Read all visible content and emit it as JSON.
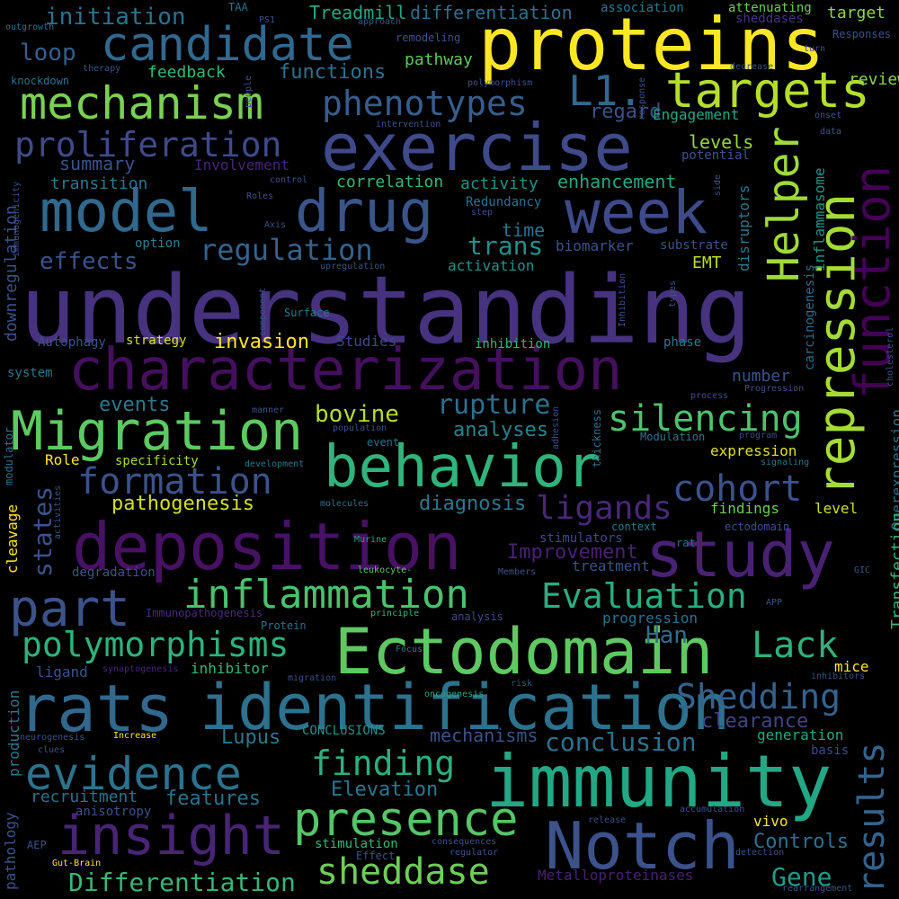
{
  "words": [
    {
      "text": "understanding",
      "color": "#46327e"
    },
    {
      "text": "characterization",
      "color": "#440f5c"
    },
    {
      "text": "deposition",
      "color": "#471164"
    },
    {
      "text": "Ectodomain",
      "color": "#5ec962"
    },
    {
      "text": "exercise",
      "color": "#3e4a89"
    },
    {
      "text": "proteins",
      "color": "#fde725"
    },
    {
      "text": "immunity",
      "color": "#22a884"
    },
    {
      "text": "behavior",
      "color": "#2fb47c"
    },
    {
      "text": "study",
      "color": "#482173"
    },
    {
      "text": "Notch",
      "color": "#3b528b"
    },
    {
      "text": "rats",
      "color": "#31688e"
    },
    {
      "text": "identification",
      "color": "#2c728e"
    },
    {
      "text": "model",
      "color": "#30688e"
    },
    {
      "text": "drug",
      "color": "#3a548c"
    },
    {
      "text": "week",
      "color": "#3e4a89"
    },
    {
      "text": "Migration",
      "color": "#5ec962"
    },
    {
      "text": "insight",
      "color": "#482475"
    },
    {
      "text": "candidate",
      "color": "#31688e"
    },
    {
      "text": "mechanism",
      "color": "#7ad151"
    },
    {
      "text": "targets",
      "color": "#b5de2b"
    },
    {
      "text": "L1.",
      "color": "#31688e"
    },
    {
      "text": "part",
      "color": "#3b528b"
    },
    {
      "text": "presence",
      "color": "#54c568"
    },
    {
      "text": "evidence",
      "color": "#2c728e"
    },
    {
      "text": "inflammation",
      "color": "#4ac16d"
    },
    {
      "text": "proliferation",
      "color": "#3e4a89"
    },
    {
      "text": "repression",
      "color": "#a5db36"
    },
    {
      "text": "function",
      "color": "#440154"
    },
    {
      "text": "Helper",
      "color": "#9fda3a"
    },
    {
      "text": "results",
      "color": "#32648e"
    },
    {
      "text": "sheddase",
      "color": "#6ece58"
    },
    {
      "text": "phenotypes",
      "color": "#365d8d"
    },
    {
      "text": "silencing",
      "color": "#4ec36b"
    },
    {
      "text": "formation",
      "color": "#3b528b"
    },
    {
      "text": "polymorphisms",
      "color": "#2db27d"
    },
    {
      "text": "Evaluation",
      "color": "#28ae80"
    },
    {
      "text": "Shedding",
      "color": "#33638d"
    },
    {
      "text": "regulation",
      "color": "#33638d"
    },
    {
      "text": "cohort",
      "color": "#3b528b"
    },
    {
      "text": "Lack",
      "color": "#2db27d"
    },
    {
      "text": "ligands",
      "color": "#482878"
    },
    {
      "text": "finding",
      "color": "#2ab07f"
    },
    {
      "text": "conclusion",
      "color": "#2c728e"
    },
    {
      "text": "rupture",
      "color": "#2e6f8e"
    },
    {
      "text": "Differentiation",
      "color": "#35b779"
    },
    {
      "text": "Gene",
      "color": "#1e9b8a"
    },
    {
      "text": "Han",
      "color": "#2e6e8e"
    },
    {
      "text": "bovine",
      "color": "#b5de2b"
    },
    {
      "text": "states",
      "color": "#3b528b"
    },
    {
      "text": "analyses",
      "color": "#25848e"
    },
    {
      "text": "diagnosis",
      "color": "#2a788e"
    },
    {
      "text": "invasion",
      "color": "#fde725"
    },
    {
      "text": "events",
      "color": "#2a788e"
    },
    {
      "text": "effects",
      "color": "#3b528b"
    },
    {
      "text": "trans",
      "color": "#20928c"
    },
    {
      "text": "Elevation",
      "color": "#2a788e"
    },
    {
      "text": "recruitment",
      "color": "#2c728e"
    },
    {
      "text": "features",
      "color": "#2c728e"
    },
    {
      "text": "Improvement",
      "color": "#482173"
    },
    {
      "text": "pathogenesis",
      "color": "#d2e21b"
    },
    {
      "text": "clearance",
      "color": "#414487"
    },
    {
      "text": "Controls",
      "color": "#2c728e"
    },
    {
      "text": "Lupus",
      "color": "#2a788e"
    },
    {
      "text": "mechanisms",
      "color": "#3b528b"
    },
    {
      "text": "initiation",
      "color": "#2c728e"
    },
    {
      "text": "Treadmill",
      "color": "#22a884"
    },
    {
      "text": "differentiation",
      "color": "#2e6e8e"
    },
    {
      "text": "loop",
      "color": "#355f8d"
    },
    {
      "text": "functions",
      "color": "#2c728e"
    },
    {
      "text": "feedback",
      "color": "#35b779"
    },
    {
      "text": "pathway",
      "color": "#5ec962"
    },
    {
      "text": "review",
      "color": "#86d549"
    },
    {
      "text": "target",
      "color": "#90d743"
    },
    {
      "text": "association",
      "color": "#2a788e"
    },
    {
      "text": "attenuating",
      "color": "#6ece58"
    },
    {
      "text": "sheddases",
      "color": "#46337f"
    },
    {
      "text": "regard",
      "color": "#3b528b"
    },
    {
      "text": "Engagement",
      "color": "#22a884"
    },
    {
      "text": "summary",
      "color": "#3b528b"
    },
    {
      "text": "Involvement",
      "color": "#482475"
    },
    {
      "text": "levels",
      "color": "#95d840"
    },
    {
      "text": "potential",
      "color": "#3b528b"
    },
    {
      "text": "transition",
      "color": "#2a788e"
    },
    {
      "text": "correlation",
      "color": "#35b779"
    },
    {
      "text": "activity",
      "color": "#21918c"
    },
    {
      "text": "enhancement",
      "color": "#22a884"
    },
    {
      "text": "Redundancy",
      "color": "#2c728e"
    },
    {
      "text": "time",
      "color": "#2c728e"
    },
    {
      "text": "biomarker",
      "color": "#3b528b"
    },
    {
      "text": "substrate",
      "color": "#3b528b"
    },
    {
      "text": "option",
      "color": "#27808e"
    },
    {
      "text": "activation",
      "color": "#21918c"
    },
    {
      "text": "EMT",
      "color": "#bddf26"
    },
    {
      "text": "disruptors",
      "color": "#2a788e"
    },
    {
      "text": "inflammasome",
      "color": "#21918c"
    },
    {
      "text": "carcinogenesis",
      "color": "#2e6e8e"
    },
    {
      "text": "Overexpression",
      "color": "#2c728e"
    },
    {
      "text": "Transfection",
      "color": "#35b779"
    },
    {
      "text": "downregulation",
      "color": "#3b528b"
    },
    {
      "text": "Autophagy",
      "color": "#3b528b"
    },
    {
      "text": "strategy",
      "color": "#d8e219"
    },
    {
      "text": "Studies",
      "color": "#3e4a89"
    },
    {
      "text": "inhibition",
      "color": "#35b779"
    },
    {
      "text": "phase",
      "color": "#2a788e"
    },
    {
      "text": "number",
      "color": "#3b528b"
    },
    {
      "text": "system",
      "color": "#2a788e"
    },
    {
      "text": "Role",
      "color": "#fde725"
    },
    {
      "text": "specificity",
      "color": "#aadc32"
    },
    {
      "text": "expression",
      "color": "#dde318"
    },
    {
      "text": "findings",
      "color": "#6ece58"
    },
    {
      "text": "level",
      "color": "#cde11d"
    },
    {
      "text": "stimulators",
      "color": "#3e4a89"
    },
    {
      "text": "treatment",
      "color": "#3b528b"
    },
    {
      "text": "context",
      "color": "#2a788e"
    },
    {
      "text": "ectodomain",
      "color": "#3b528b"
    },
    {
      "text": "rat",
      "color": "#2c728e"
    },
    {
      "text": "cleavage",
      "color": "#fde725"
    },
    {
      "text": "modulator",
      "color": "#2c728e"
    },
    {
      "text": "degradation",
      "color": "#3b528b"
    },
    {
      "text": "progression",
      "color": "#2c728e"
    },
    {
      "text": "inhibitor",
      "color": "#35b779"
    },
    {
      "text": "ligand",
      "color": "#3b528b"
    },
    {
      "text": "mice",
      "color": "#fde725"
    },
    {
      "text": "production",
      "color": "#2a788e"
    },
    {
      "text": "pathology",
      "color": "#3b528b"
    },
    {
      "text": "generation",
      "color": "#22a884"
    },
    {
      "text": "CONCLUSIONS",
      "color": "#21918c"
    },
    {
      "text": "stimulation",
      "color": "#35b779"
    },
    {
      "text": "Effect",
      "color": "#3b528b"
    },
    {
      "text": "vivo",
      "color": "#fde725"
    },
    {
      "text": "AEP",
      "color": "#3b528b"
    },
    {
      "text": "Metalloproteinases",
      "color": "#482173"
    },
    {
      "text": "basis",
      "color": "#3e4a89"
    },
    {
      "text": "anisotropy",
      "color": "#3b528b"
    },
    {
      "text": "Surface",
      "color": "#2a788e"
    },
    {
      "text": "Immunopathogenesis",
      "color": "#472d7b"
    },
    {
      "text": "Protein",
      "color": "#2c728e"
    },
    {
      "text": "analysis",
      "color": "#3e4a89"
    },
    {
      "text": "Modulation",
      "color": "#2a788e"
    },
    {
      "text": "thickness",
      "color": "#2c728e"
    },
    {
      "text": "adhesion",
      "color": "#3b528b"
    },
    {
      "text": "program",
      "color": "#3e4a89"
    },
    {
      "text": "signaling",
      "color": "#2a788e"
    },
    {
      "text": "population",
      "color": "#3b528b"
    },
    {
      "text": "event",
      "color": "#2c728e"
    },
    {
      "text": "development",
      "color": "#2a788e"
    },
    {
      "text": "molecules",
      "color": "#2c728e"
    },
    {
      "text": "Murine",
      "color": "#22a884"
    },
    {
      "text": "leukocyte-",
      "color": "#5ec962"
    },
    {
      "text": "Members",
      "color": "#3b528b"
    },
    {
      "text": "principle",
      "color": "#35b779"
    },
    {
      "text": "Focus",
      "color": "#2a788e"
    },
    {
      "text": "migration",
      "color": "#3b528b"
    },
    {
      "text": "risk",
      "color": "#3b528b"
    },
    {
      "text": "oncogenesis",
      "color": "#22a884"
    },
    {
      "text": "synaptogenesis",
      "color": "#482475"
    },
    {
      "text": "Increase",
      "color": "#fde725"
    },
    {
      "text": "clues",
      "color": "#3b528b"
    },
    {
      "text": "neurogenesis",
      "color": "#3b528b"
    },
    {
      "text": "consequences",
      "color": "#3b528b"
    },
    {
      "text": "regulator",
      "color": "#3b528b"
    },
    {
      "text": "detection",
      "color": "#3b528b"
    },
    {
      "text": "release",
      "color": "#3b528b"
    },
    {
      "text": "accumulation",
      "color": "#3b528b"
    },
    {
      "text": "rearrangement",
      "color": "#3b528b"
    },
    {
      "text": "inhibitors",
      "color": "#3b528b"
    },
    {
      "text": "GIC",
      "color": "#3b528b"
    },
    {
      "text": "APP",
      "color": "#3b528b"
    },
    {
      "text": "Gut-Brain",
      "color": "#fde725"
    },
    {
      "text": "outgrowth",
      "color": "#2c728e"
    },
    {
      "text": "knockdown",
      "color": "#2c728e"
    },
    {
      "text": "TAA",
      "color": "#2c728e"
    },
    {
      "text": "PS1",
      "color": "#3b528b"
    },
    {
      "text": "approach",
      "color": "#3b528b"
    },
    {
      "text": "remodeling",
      "color": "#3b528b"
    },
    {
      "text": "therapy",
      "color": "#3b528b"
    },
    {
      "text": "polymorphism",
      "color": "#3b528b"
    },
    {
      "text": "people",
      "color": "#3b528b"
    },
    {
      "text": "intervention",
      "color": "#3b528b"
    },
    {
      "text": "response",
      "color": "#3b528b"
    },
    {
      "text": "turn",
      "color": "#3b528b"
    },
    {
      "text": "Responses",
      "color": "#3b528b"
    },
    {
      "text": "decrease",
      "color": "#3b528b"
    },
    {
      "text": "onset",
      "color": "#3b528b"
    },
    {
      "text": "data",
      "color": "#3b528b"
    },
    {
      "text": "control",
      "color": "#3b528b"
    },
    {
      "text": "Roles",
      "color": "#3b528b"
    },
    {
      "text": "Axis",
      "color": "#3b528b"
    },
    {
      "text": "step",
      "color": "#3b528b"
    },
    {
      "text": "immunogenicity",
      "color": "#3b528b"
    },
    {
      "text": "upregulation",
      "color": "#3b528b"
    },
    {
      "text": "component",
      "color": "#3b528b"
    },
    {
      "text": "Inhibition",
      "color": "#3b528b"
    },
    {
      "text": "types",
      "color": "#3b528b"
    },
    {
      "text": "side",
      "color": "#3b528b"
    },
    {
      "text": "cholesterol",
      "color": "#3b528b"
    },
    {
      "text": "Progression",
      "color": "#3b528b"
    },
    {
      "text": "process",
      "color": "#3b528b"
    },
    {
      "text": "manner",
      "color": "#3b528b"
    },
    {
      "text": "activities",
      "color": "#3b528b"
    }
  ]
}
